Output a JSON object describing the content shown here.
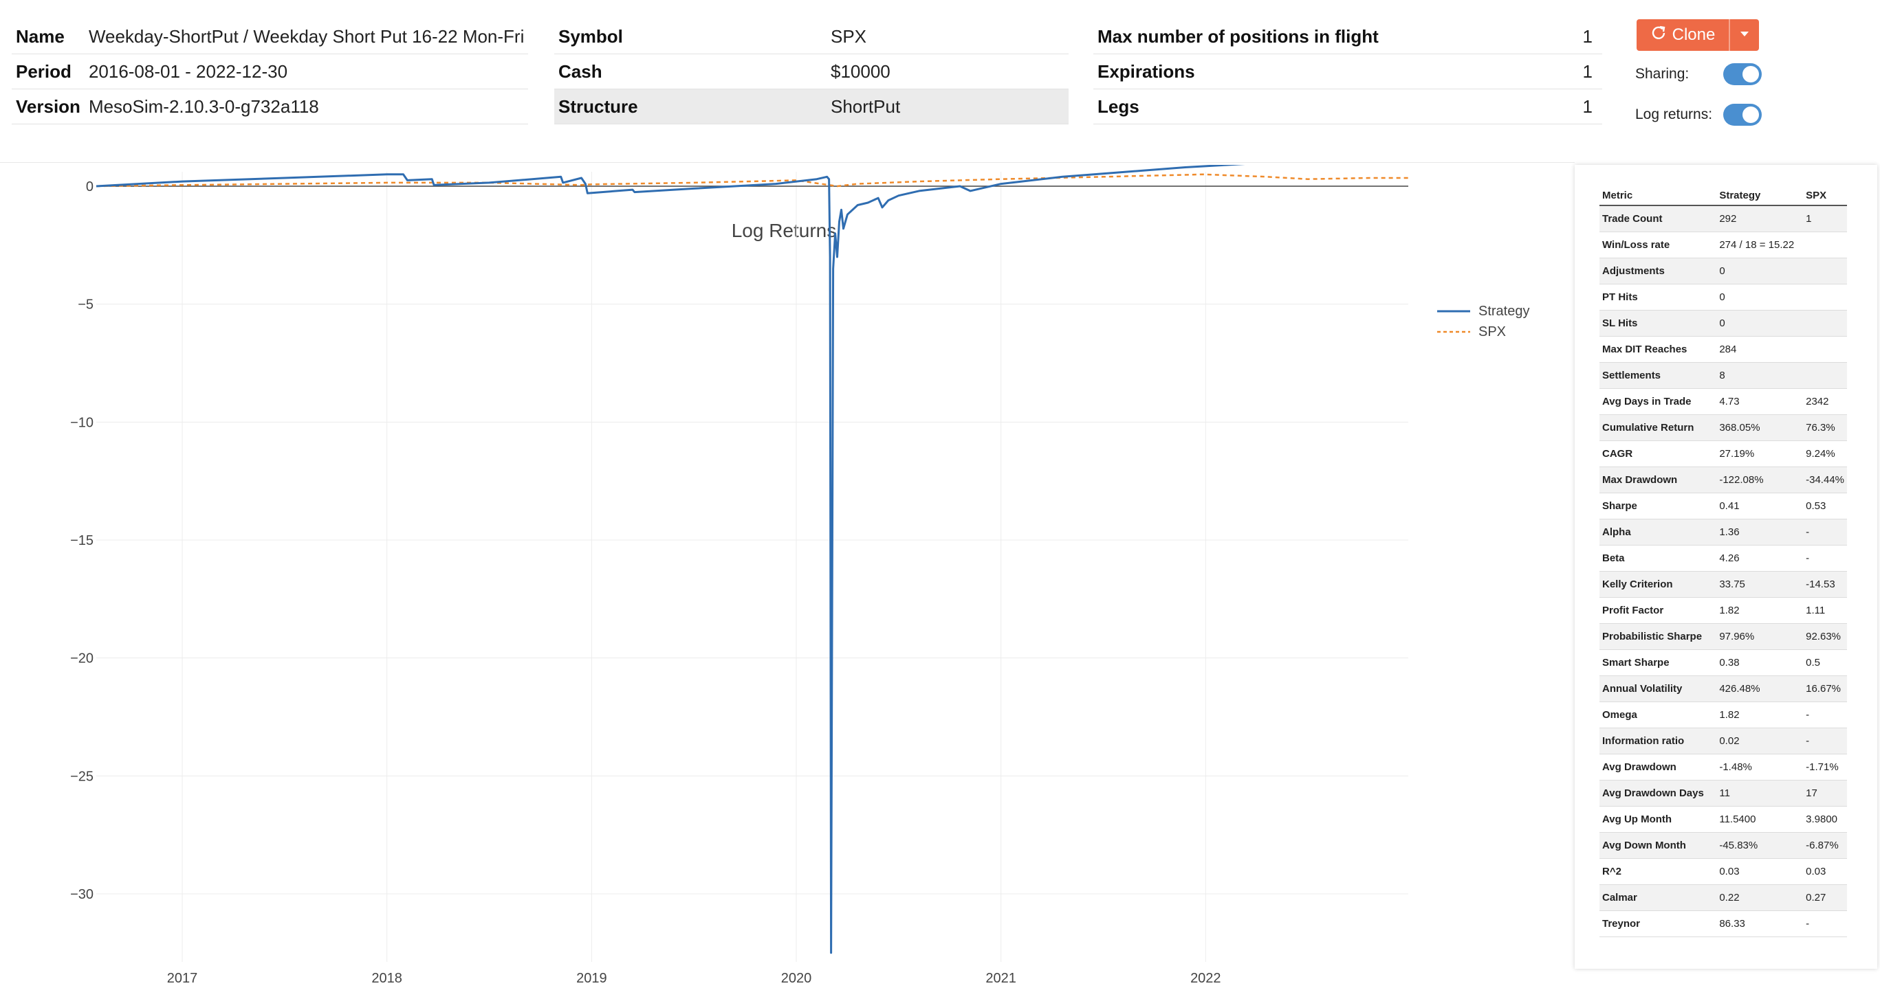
{
  "info": {
    "col1": [
      {
        "key": "Name",
        "value": "Weekday-ShortPut / Weekday Short Put 16-22 Mon-Fri"
      },
      {
        "key": "Period",
        "value": "2016-08-01 - 2022-12-30"
      },
      {
        "key": "Version",
        "value": "MesoSim-2.10.3-0-g732a118"
      }
    ],
    "col2": [
      {
        "key": "Symbol",
        "value": "SPX"
      },
      {
        "key": "Cash",
        "value": "$10000"
      },
      {
        "key": "Structure",
        "value": "ShortPut"
      }
    ],
    "col3": [
      {
        "key": "Max number of positions in flight",
        "value": "1"
      },
      {
        "key": "Expirations",
        "value": "1"
      },
      {
        "key": "Legs",
        "value": "1"
      }
    ]
  },
  "actions": {
    "clone_label": "Clone"
  },
  "toggles": {
    "sharing_label": "Sharing:",
    "log_returns_label": "Log returns:"
  },
  "colors": {
    "accent": "#ee6a46",
    "strategy": "#2f6db1",
    "spx": "#ef8a2a",
    "toggle": "#4a8fd0"
  },
  "chart_data": {
    "type": "line",
    "title": "Log Returns",
    "xlabel": "",
    "ylabel": "",
    "xlim": [
      2016.58,
      2022.99
    ],
    "ylim": [
      -33,
      3
    ],
    "x_ticks": [
      "2017",
      "2018",
      "2019",
      "2020",
      "2021",
      "2022"
    ],
    "y_ticks": [
      0,
      -5,
      -10,
      -15,
      -20,
      -25,
      -30
    ],
    "y_tick_labels": [
      "0",
      "−5",
      "−10",
      "−15",
      "−20",
      "−25",
      "−30"
    ],
    "legend_position": "top-right",
    "grid": true,
    "series": [
      {
        "name": "Strategy",
        "x": [
          2016.58,
          2017.0,
          2017.5,
          2018.0,
          2018.08,
          2018.1,
          2018.22,
          2018.23,
          2018.5,
          2018.85,
          2018.86,
          2018.95,
          2018.97,
          2018.98,
          2019.2,
          2019.21,
          2019.5,
          2019.9,
          2020.1,
          2020.15,
          2020.16,
          2020.165,
          2020.17,
          2020.18,
          2020.19,
          2020.2,
          2020.21,
          2020.22,
          2020.23,
          2020.25,
          2020.3,
          2020.35,
          2020.4,
          2020.42,
          2020.45,
          2020.5,
          2020.6,
          2020.8,
          2020.85,
          2021.0,
          2021.3,
          2021.6,
          2021.9,
          2022.1,
          2022.5,
          2022.99
        ],
        "y": [
          0,
          0.2,
          0.35,
          0.5,
          0.5,
          0.25,
          0.3,
          0.05,
          0.15,
          0.4,
          0.15,
          0.35,
          0.1,
          -0.3,
          -0.15,
          -0.25,
          -0.1,
          0.1,
          0.3,
          0.4,
          0.3,
          -3.0,
          -32.5,
          -3.5,
          -2.0,
          -3.0,
          -1.5,
          -1.0,
          -1.8,
          -1.2,
          -0.8,
          -0.7,
          -0.5,
          -0.9,
          -0.6,
          -0.4,
          -0.2,
          0.0,
          -0.2,
          0.1,
          0.4,
          0.6,
          0.8,
          0.9,
          1.1,
          1.3
        ]
      },
      {
        "name": "SPX",
        "x": [
          2016.58,
          2017.0,
          2017.5,
          2018.0,
          2018.5,
          2018.95,
          2019.0,
          2019.5,
          2020.0,
          2020.2,
          2020.3,
          2020.6,
          2021.0,
          2021.5,
          2021.99,
          2022.3,
          2022.5,
          2022.8,
          2022.99
        ],
        "y": [
          0,
          0.05,
          0.1,
          0.15,
          0.15,
          0.05,
          0.08,
          0.15,
          0.25,
          0.0,
          0.1,
          0.2,
          0.3,
          0.4,
          0.5,
          0.4,
          0.3,
          0.35,
          0.35
        ]
      }
    ]
  },
  "metrics": {
    "headers": [
      "Metric",
      "Strategy",
      "SPX"
    ],
    "rows": [
      [
        "Trade Count",
        "292",
        "1"
      ],
      [
        "Win/Loss rate",
        "274 / 18 = 15.22",
        ""
      ],
      [
        "Adjustments",
        "0",
        ""
      ],
      [
        "PT Hits",
        "0",
        ""
      ],
      [
        "SL Hits",
        "0",
        ""
      ],
      [
        "Max DIT Reaches",
        "284",
        ""
      ],
      [
        "Settlements",
        "8",
        ""
      ],
      [
        "Avg Days in Trade",
        "4.73",
        "2342"
      ],
      [
        "Cumulative Return",
        "368.05%",
        "76.3%"
      ],
      [
        "CAGR",
        "27.19%",
        "9.24%"
      ],
      [
        "Max Drawdown",
        "-122.08%",
        "-34.44%"
      ],
      [
        "Sharpe",
        "0.41",
        "0.53"
      ],
      [
        "Alpha",
        "1.36",
        "-"
      ],
      [
        "Beta",
        "4.26",
        "-"
      ],
      [
        "Kelly Criterion",
        "33.75",
        "-14.53"
      ],
      [
        "Profit Factor",
        "1.82",
        "1.11"
      ],
      [
        "Probabilistic Sharpe",
        "97.96%",
        "92.63%"
      ],
      [
        "Smart Sharpe",
        "0.38",
        "0.5"
      ],
      [
        "Annual Volatility",
        "426.48%",
        "16.67%"
      ],
      [
        "Omega",
        "1.82",
        "-"
      ],
      [
        "Information ratio",
        "0.02",
        "-"
      ],
      [
        "Avg Drawdown",
        "-1.48%",
        "-1.71%"
      ],
      [
        "Avg Drawdown Days",
        "11",
        "17"
      ],
      [
        "Avg Up Month",
        "11.5400",
        "3.9800"
      ],
      [
        "Avg Down Month",
        "-45.83%",
        "-6.87%"
      ],
      [
        "R^2",
        "0.03",
        "0.03"
      ],
      [
        "Calmar",
        "0.22",
        "0.27"
      ],
      [
        "Treynor",
        "86.33",
        "-"
      ]
    ]
  }
}
